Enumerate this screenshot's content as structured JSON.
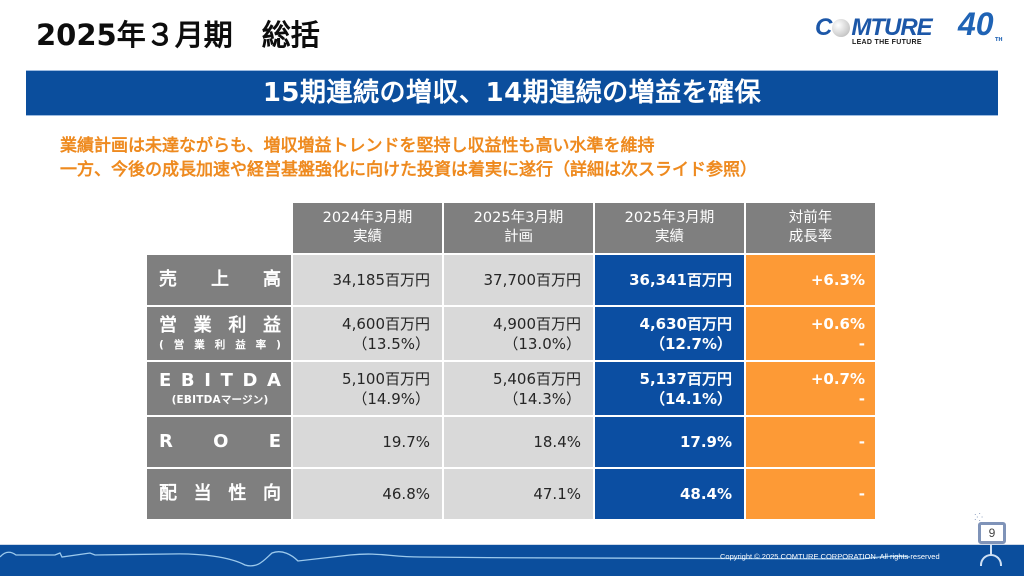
{
  "slide": {
    "title": "2025年３月期　総括",
    "banner": "15期連続の増収、14期連続の増益を確保",
    "lead_lines": [
      "業績計画は未達ながらも、増収増益トレンドを堅持し収益性も高い水準を維持",
      "一方、今後の成長加速や経営基盤強化に向けた投資は着実に遂行（詳細は次スライド参照）"
    ],
    "page_number": "9",
    "copyright": "Copyright © 2025 COMTURE CORPORATION. All rights reserved"
  },
  "logo": {
    "word_pre": "C",
    "word_post": "MTURE",
    "tagline": "LEAD THE FUTURE",
    "anniversary": "40",
    "anniversary_suffix": "TH"
  },
  "table": {
    "columns": [
      {
        "line1": "2024年3月期",
        "line2": "実績"
      },
      {
        "line1": "2025年3月期",
        "line2": "計画"
      },
      {
        "line1": "2025年3月期",
        "line2": "実績"
      },
      {
        "line1": "対前年",
        "line2": "成長率"
      }
    ],
    "rows": [
      {
        "label_chars": [
          "売",
          "上",
          "高"
        ],
        "sub_chars": [],
        "prev": {
          "main": "34,185百万円",
          "sub": ""
        },
        "plan": {
          "main": "37,700百万円",
          "sub": ""
        },
        "actual": {
          "main": "36,341百万円",
          "sub": ""
        },
        "growth": {
          "main": "+6.3%",
          "sub": ""
        }
      },
      {
        "label_chars": [
          "営",
          "業",
          "利",
          "益"
        ],
        "sub_chars": [
          "(",
          "営",
          "業",
          "利",
          "益",
          "率",
          ")"
        ],
        "prev": {
          "main": "4,600百万円",
          "sub": "（13.5%）"
        },
        "plan": {
          "main": "4,900百万円",
          "sub": "（13.0%）"
        },
        "actual": {
          "main": "4,630百万円",
          "sub": "（12.7%）"
        },
        "growth": {
          "main": "+0.6%",
          "sub": "-"
        }
      },
      {
        "label_chars": [
          "E",
          "B",
          "I",
          "T",
          "D",
          "A"
        ],
        "sub_text": "(EBITDAマージン)",
        "prev": {
          "main": "5,100百万円",
          "sub": "（14.9%）"
        },
        "plan": {
          "main": "5,406百万円",
          "sub": "（14.3%）"
        },
        "actual": {
          "main": "5,137百万円",
          "sub": "（14.1%）"
        },
        "growth": {
          "main": "+0.7%",
          "sub": "-"
        }
      },
      {
        "label_chars": [
          "R",
          "O",
          "E"
        ],
        "sub_chars": [],
        "prev": {
          "main": "19.7%",
          "sub": ""
        },
        "plan": {
          "main": "18.4%",
          "sub": ""
        },
        "actual": {
          "main": "17.9%",
          "sub": ""
        },
        "growth": {
          "main": "-",
          "sub": ""
        }
      },
      {
        "label_chars": [
          "配",
          "当",
          "性",
          "向"
        ],
        "sub_chars": [],
        "prev": {
          "main": "46.8%",
          "sub": ""
        },
        "plan": {
          "main": "47.1%",
          "sub": ""
        },
        "actual": {
          "main": "48.4%",
          "sub": ""
        },
        "growth": {
          "main": "-",
          "sub": ""
        }
      }
    ]
  },
  "colors": {
    "banner_blue": "#0b4e9d",
    "lead_orange": "#ee8a1f",
    "header_gray": "#7f7f7f",
    "cell_gray": "#d9d9d9",
    "actual_blue": "#0b4ea2",
    "growth_orange": "#fd9a36"
  }
}
